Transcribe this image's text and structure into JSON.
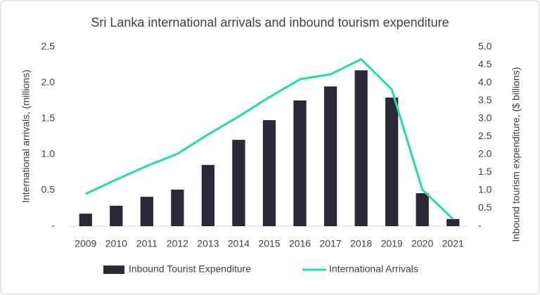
{
  "chart_data": {
    "type": "bar",
    "title": "Sri Lanka international arrivals and inbound tourism expenditure",
    "ylabel": "International arrivals, (millions)",
    "y2label": "Inbound tourism expenditure, ($ billions)",
    "categories": [
      "2009",
      "2010",
      "2011",
      "2012",
      "2013",
      "2014",
      "2015",
      "2016",
      "2017",
      "2018",
      "2019",
      "2020",
      "2021"
    ],
    "series": [
      {
        "name": "Inbound Tourist Expenditure",
        "type": "bar",
        "axis": "y2",
        "color": "#2b2838",
        "values": [
          0.35,
          0.57,
          0.82,
          1.02,
          1.71,
          2.41,
          2.96,
          3.51,
          3.9,
          4.35,
          3.59,
          0.92,
          0.2
        ]
      },
      {
        "name": "International Arrivals",
        "type": "line",
        "axis": "y",
        "color": "#1de0a8",
        "values": [
          0.45,
          0.65,
          0.84,
          1.01,
          1.28,
          1.53,
          1.8,
          2.05,
          2.12,
          2.33,
          1.91,
          0.51,
          0.1
        ]
      }
    ],
    "ylim": [
      0,
      2.5
    ],
    "yticks": [
      {
        "value": 0,
        "label": "-"
      },
      0.5,
      {
        "value": 1,
        "label": "1.0"
      },
      1.5,
      {
        "value": 2,
        "label": "2.0"
      },
      2.5
    ],
    "y2lim": [
      0,
      5
    ],
    "y2ticks": [
      {
        "value": 0,
        "label": "-"
      },
      0.5,
      {
        "value": 1,
        "label": "1.0"
      },
      1.5,
      {
        "value": 2,
        "label": "2.0"
      },
      2.5,
      {
        "value": 3,
        "label": "3.0"
      },
      3.5,
      {
        "value": 4,
        "label": "4.0"
      },
      4.5,
      {
        "value": 5,
        "label": "5.0"
      }
    ],
    "grid": false
  }
}
